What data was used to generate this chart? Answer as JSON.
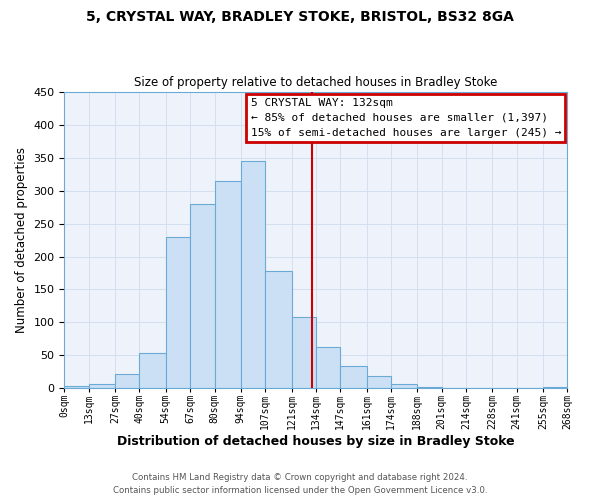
{
  "title": "5, CRYSTAL WAY, BRADLEY STOKE, BRISTOL, BS32 8GA",
  "subtitle": "Size of property relative to detached houses in Bradley Stoke",
  "xlabel": "Distribution of detached houses by size in Bradley Stoke",
  "ylabel": "Number of detached properties",
  "bin_labels": [
    "0sqm",
    "13sqm",
    "27sqm",
    "40sqm",
    "54sqm",
    "67sqm",
    "80sqm",
    "94sqm",
    "107sqm",
    "121sqm",
    "134sqm",
    "147sqm",
    "161sqm",
    "174sqm",
    "188sqm",
    "201sqm",
    "214sqm",
    "228sqm",
    "241sqm",
    "255sqm",
    "268sqm"
  ],
  "bin_edges": [
    0,
    13,
    27,
    40,
    54,
    67,
    80,
    94,
    107,
    121,
    134,
    147,
    161,
    174,
    188,
    201,
    214,
    228,
    241,
    255,
    268
  ],
  "bar_heights": [
    3,
    6,
    22,
    54,
    230,
    280,
    315,
    345,
    178,
    108,
    63,
    34,
    18,
    7,
    2,
    0,
    0,
    0,
    0,
    1
  ],
  "bar_facecolor": "#cce0f5",
  "bar_edgecolor": "#6aaad4",
  "vline_x": 132,
  "vline_color": "#cc0000",
  "ylim": [
    0,
    450
  ],
  "yticks": [
    0,
    50,
    100,
    150,
    200,
    250,
    300,
    350,
    400,
    450
  ],
  "annotation_title": "5 CRYSTAL WAY: 132sqm",
  "annotation_line1": "← 85% of detached houses are smaller (1,397)",
  "annotation_line2": "15% of semi-detached houses are larger (245) →",
  "annotation_box_color": "#cc0000",
  "footer1": "Contains HM Land Registry data © Crown copyright and database right 2024.",
  "footer2": "Contains public sector information licensed under the Open Government Licence v3.0.",
  "grid_color": "#d4dff0",
  "background_color": "#eef2fb",
  "fig_background": "#ffffff"
}
